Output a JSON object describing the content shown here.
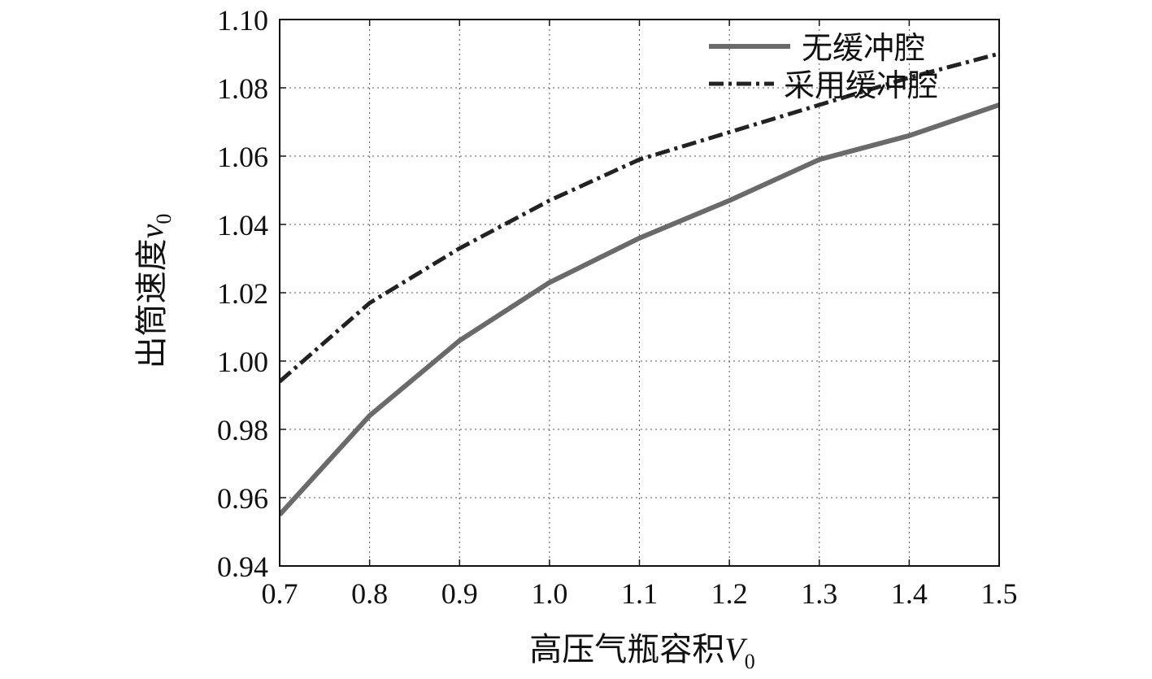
{
  "chart_data": {
    "type": "line",
    "xlabel": {
      "text": "高压气瓶容积",
      "var": "V",
      "sub": "0"
    },
    "ylabel": {
      "text": "出筒速度",
      "var": "v",
      "sub": "0"
    },
    "xlim": [
      0.7,
      1.5
    ],
    "ylim": [
      0.94,
      1.1
    ],
    "xticks": [
      "0.7",
      "0.8",
      "0.9",
      "1.0",
      "1.1",
      "1.2",
      "1.3",
      "1.4",
      "1.5"
    ],
    "yticks": [
      "0.94",
      "0.96",
      "0.98",
      "1.00",
      "1.02",
      "1.04",
      "1.06",
      "1.08",
      "1.10"
    ],
    "grid": true,
    "legend_position": "top-right",
    "series": [
      {
        "name": "无缓冲腔",
        "style": "solid",
        "color": "#6a6a6a",
        "x": [
          0.7,
          0.8,
          0.9,
          1.0,
          1.1,
          1.2,
          1.3,
          1.4,
          1.5
        ],
        "y": [
          0.955,
          0.984,
          1.006,
          1.023,
          1.036,
          1.047,
          1.059,
          1.066,
          1.075
        ]
      },
      {
        "name": "采用缓冲腔",
        "style": "dashdot",
        "color": "#222222",
        "x": [
          0.7,
          0.8,
          0.9,
          1.0,
          1.1,
          1.2,
          1.3,
          1.4,
          1.5
        ],
        "y": [
          0.994,
          1.017,
          1.033,
          1.047,
          1.059,
          1.067,
          1.075,
          1.083,
          1.09
        ]
      }
    ]
  }
}
